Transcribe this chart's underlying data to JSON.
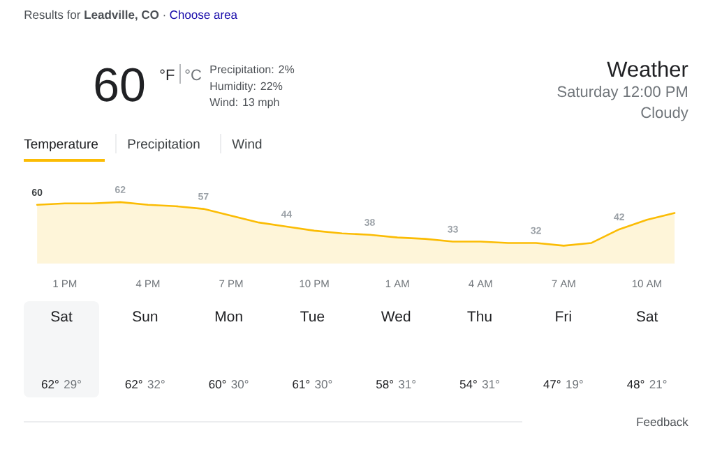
{
  "chart_data": {
    "type": "area",
    "title": "Weather",
    "subtitle": "Saturday 12:00 PM",
    "annotations": [
      "Results for **Leadville, CO** ·",
      "Choose area",
      "60",
      "°F",
      "°C",
      "Precipitation: 2%",
      "Humidity: 22%",
      "Wind: 13 mph",
      "Cloudy",
      "Temperature",
      "Precipitation",
      "Wind",
      "Sat",
      "62°",
      "29°",
      "Sun",
      "62°",
      "32°",
      "Mon",
      "60°",
      "30°",
      "Tue",
      "61°",
      "30°",
      "Wed",
      "58°",
      "31°",
      "Thu",
      "54°",
      "31°",
      "Fri",
      "47°",
      "19°",
      "Sat",
      "48°",
      "21°",
      "Feedback"
    ],
    "categories": [
      null,
      "1 PM",
      null,
      null,
      "4 PM",
      null,
      null,
      "7 PM",
      null,
      null,
      "10 PM",
      null,
      null,
      "1 AM",
      null,
      null,
      "4 AM",
      null,
      null,
      "7 AM",
      null,
      null,
      "10 AM",
      null
    ],
    "values": [
      60,
      61,
      61,
      62,
      60,
      59,
      57,
      52,
      47,
      44,
      41,
      39,
      38,
      36,
      35,
      33,
      33,
      32,
      32,
      30,
      32,
      42,
      49,
      54
    ],
    "value_labels": [
      "60",
      null,
      null,
      "62",
      null,
      null,
      "57",
      null,
      null,
      "44",
      null,
      null,
      "38",
      null,
      null,
      "33",
      null,
      null,
      "32",
      null,
      null,
      "42",
      null,
      null
    ],
    "color": "#fbbc04",
    "tick_labels": "x"
  }
}
